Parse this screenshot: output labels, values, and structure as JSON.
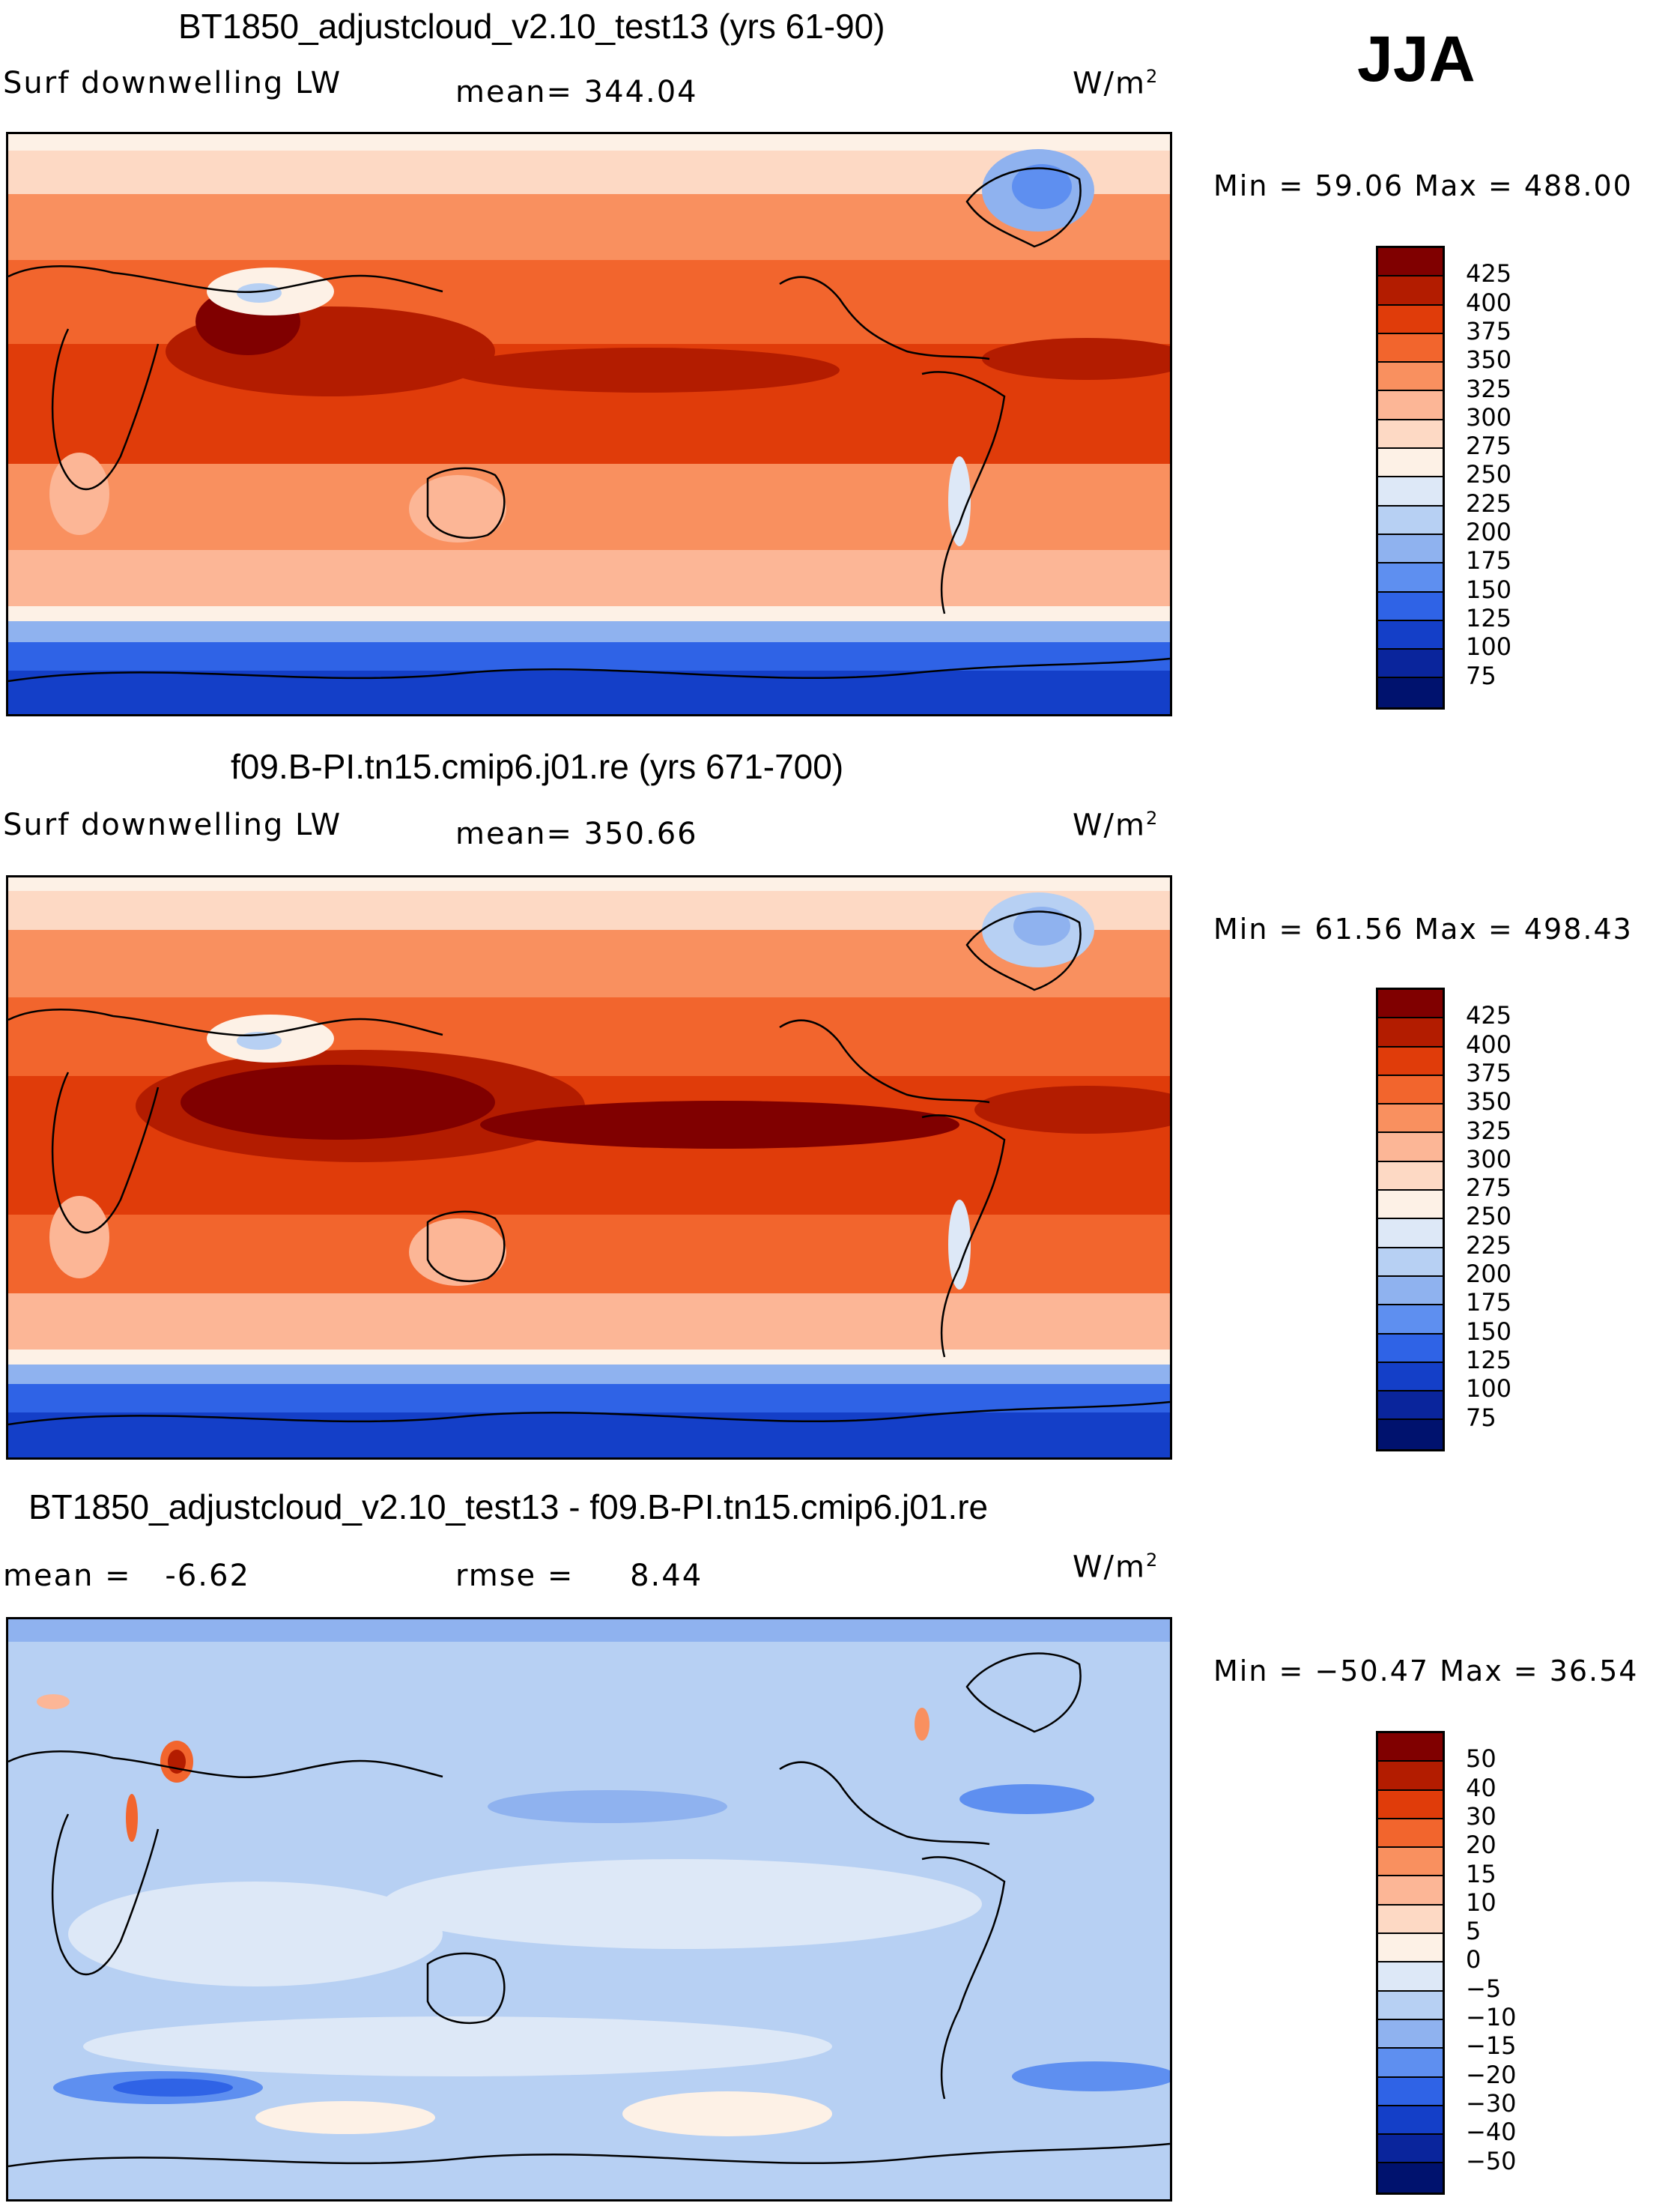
{
  "season": "JJA",
  "panels": [
    {
      "title": "BT1850_adjustcloud_v2.10_test13 (yrs 61-90)",
      "variable": "Surf downwelling LW",
      "stat_label": "mean=",
      "stat_value": "344.04",
      "units_base": "W/m",
      "units_exp": "2",
      "minmax": "Min =   59.06  Max =  488.00"
    },
    {
      "title": "f09.B-PI.tn15.cmip6.j01.re (yrs 671-700)",
      "variable": "Surf downwelling LW",
      "stat_label": "mean=",
      "stat_value": "350.66",
      "units_base": "W/m",
      "units_exp": "2",
      "minmax": "Min =   61.56  Max =  498.43"
    },
    {
      "title": "BT1850_adjustcloud_v2.10_test13 - f09.B-PI.tn15.cmip6.j01.re",
      "stat_label": "mean =",
      "stat_value": "-6.62",
      "rmse_label": "rmse =",
      "rmse_value": "8.44",
      "units_base": "W/m",
      "units_exp": "2",
      "minmax": "Min = −50.47  Max =   36.54"
    }
  ],
  "chart_data": [
    {
      "type": "heatmap",
      "title": "BT1850_adjustcloud_v2.10_test13 (yrs 61-90)",
      "field": "Surf downwelling LW",
      "units": "W/m2",
      "mean": 344.04,
      "min": 59.06,
      "max": 488.0,
      "levels": [
        425,
        400,
        375,
        350,
        325,
        300,
        275,
        250,
        225,
        200,
        175,
        150,
        125,
        100,
        75
      ],
      "colors": [
        "#800000",
        "#b31c00",
        "#e03c0a",
        "#f2652d",
        "#f9905f",
        "#fcb696",
        "#fdd9c4",
        "#fdf1e6",
        "#dde8f7",
        "#b7d0f3",
        "#8fb2ef",
        "#5e8ff0",
        "#2f63e6",
        "#143fc8",
        "#0a259c",
        "#00126e"
      ]
    },
    {
      "type": "heatmap",
      "title": "f09.B-PI.tn15.cmip6.j01.re (yrs 671-700)",
      "field": "Surf downwelling LW",
      "units": "W/m2",
      "mean": 350.66,
      "min": 61.56,
      "max": 498.43,
      "levels": [
        425,
        400,
        375,
        350,
        325,
        300,
        275,
        250,
        225,
        200,
        175,
        150,
        125,
        100,
        75
      ],
      "colors": [
        "#800000",
        "#b31c00",
        "#e03c0a",
        "#f2652d",
        "#f9905f",
        "#fcb696",
        "#fdd9c4",
        "#fdf1e6",
        "#dde8f7",
        "#b7d0f3",
        "#8fb2ef",
        "#5e8ff0",
        "#2f63e6",
        "#143fc8",
        "#0a259c",
        "#00126e"
      ]
    },
    {
      "type": "heatmap",
      "title": "BT1850_adjustcloud_v2.10_test13 - f09.B-PI.tn15.cmip6.j01.re",
      "field": "difference",
      "units": "W/m2",
      "mean": -6.62,
      "rmse": 8.44,
      "min": -50.47,
      "max": 36.54,
      "levels": [
        "50",
        "40",
        "30",
        "20",
        "15",
        "10",
        "5",
        "0",
        "−5",
        "−10",
        "−15",
        "−20",
        "−30",
        "−40",
        "−50"
      ],
      "colors": [
        "#800000",
        "#b31c00",
        "#e03c0a",
        "#f2652d",
        "#f9905f",
        "#fcb696",
        "#fdd9c4",
        "#fdf1e6",
        "#dde8f7",
        "#b7d0f3",
        "#8fb2ef",
        "#5e8ff0",
        "#2f63e6",
        "#143fc8",
        "#0a259c",
        "#00126e"
      ]
    }
  ]
}
